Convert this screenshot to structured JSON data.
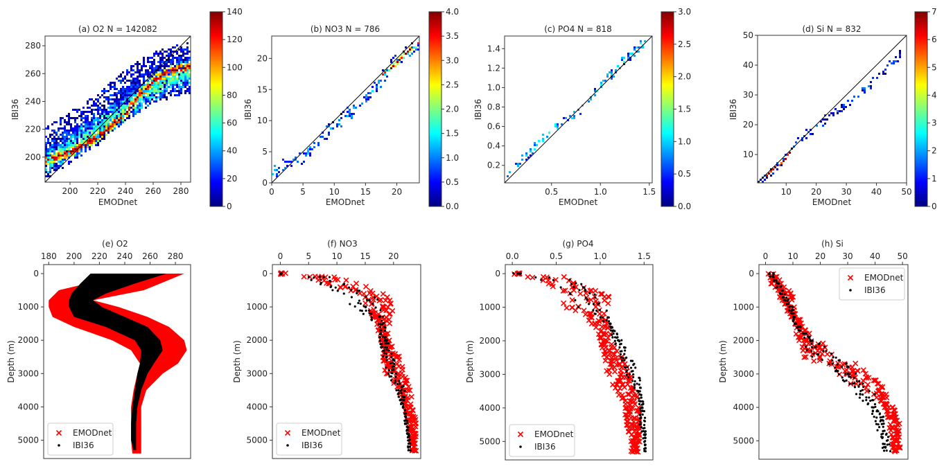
{
  "figure": {
    "colormap": [
      "#00007f",
      "#0000ff",
      "#007fff",
      "#00ffff",
      "#7fff7f",
      "#ffff00",
      "#ff7f00",
      "#ff0000",
      "#7f0000"
    ],
    "identity_line_color": "#000000",
    "emodnet_color": "#ff0000",
    "ibi36_color": "#000000"
  },
  "chart_data": [
    {
      "id": "a",
      "type": "heatmap",
      "title": "(a) O2  N = 142082",
      "xlabel": "EMODnet",
      "ylabel": "IBI36",
      "xlim": [
        182,
        287
      ],
      "ylim": [
        182,
        287
      ],
      "xticks": [
        200,
        220,
        240,
        260,
        280
      ],
      "yticks": [
        200,
        220,
        240,
        260,
        280
      ],
      "colorbar": {
        "min": 0,
        "max": 140,
        "ticks": [
          0,
          20,
          40,
          60,
          80,
          100,
          120,
          140
        ]
      },
      "identity_line": true,
      "bands": [
        {
          "x": [
            183,
            200,
            220,
            240,
            250,
            260,
            270,
            286
          ],
          "y": [
            199,
            204,
            215,
            232,
            246,
            255,
            262,
            266
          ],
          "spread": 4,
          "level": 0.95
        },
        {
          "x": [
            183,
            200,
            220,
            240,
            260,
            285
          ],
          "y": [
            198,
            208,
            222,
            236,
            250,
            262
          ],
          "spread": 9,
          "level": 0.45
        },
        {
          "x": [
            185,
            200,
            220,
            240,
            260,
            285
          ],
          "y": [
            205,
            215,
            228,
            245,
            258,
            265
          ],
          "spread": 18,
          "level": 0.12
        }
      ],
      "N": 142082
    },
    {
      "id": "b",
      "type": "heatmap",
      "title": "(b) NO3  N = 786",
      "xlabel": "EMODnet",
      "ylabel": "IBI36",
      "xlim": [
        0,
        23.6
      ],
      "ylim": [
        0,
        23.6
      ],
      "xticks": [
        0,
        5,
        10,
        15,
        20
      ],
      "yticks": [
        0,
        5,
        10,
        15,
        20
      ],
      "colorbar": {
        "min": 0.0,
        "max": 4.0,
        "ticks": [
          0.0,
          0.5,
          1.0,
          1.5,
          2.0,
          2.5,
          3.0,
          3.5,
          4.0
        ]
      },
      "identity_line": true,
      "bands": [
        {
          "x": [
            0,
            5,
            10,
            15,
            18,
            20,
            23.5
          ],
          "y": [
            2,
            4.5,
            9.5,
            13.5,
            17.5,
            20,
            22.3
          ],
          "spread": 1.2,
          "level": 0.25
        },
        {
          "x": [
            17.8,
            18.8,
            22,
            23.3
          ],
          "y": [
            17.5,
            18.5,
            21.5,
            22.5
          ],
          "spread": 0.4,
          "level": 0.95
        }
      ],
      "N": 786
    },
    {
      "id": "c",
      "type": "heatmap",
      "title": "(c) PO4  N = 818",
      "xlabel": "EMODnet",
      "ylabel": "IBI36",
      "xlim": [
        0.02,
        1.53
      ],
      "ylim": [
        0.02,
        1.53
      ],
      "xticks": [
        0.5,
        1.0,
        1.5
      ],
      "yticks": [
        0.2,
        0.4,
        0.6,
        0.8,
        1.0,
        1.2,
        1.4
      ],
      "colorbar": {
        "min": 0.0,
        "max": 3.0,
        "ticks": [
          0.0,
          0.5,
          1.0,
          1.5,
          2.0,
          2.5,
          3.0
        ]
      },
      "identity_line": true,
      "bands": [
        {
          "x": [
            0.03,
            0.3,
            0.5,
            0.8,
            1.0,
            1.2,
            1.45
          ],
          "y": [
            0.1,
            0.38,
            0.58,
            0.78,
            1.02,
            1.25,
            1.48
          ],
          "spread": 0.05,
          "level": 0.35
        }
      ],
      "N": 818
    },
    {
      "id": "d",
      "type": "heatmap",
      "title": "(d) Si  N = 832",
      "xlabel": "EMODnet",
      "ylabel": "IBI36",
      "xlim": [
        0.5,
        50
      ],
      "ylim": [
        0.5,
        50
      ],
      "xticks": [
        10,
        20,
        30,
        40,
        50
      ],
      "yticks": [
        10,
        20,
        30,
        40,
        50
      ],
      "colorbar": {
        "min": 0,
        "max": 7,
        "ticks": [
          0,
          1,
          2,
          3,
          4,
          5,
          6,
          7
        ]
      },
      "identity_line": true,
      "bands": [
        {
          "x": [
            1,
            5,
            10,
            15,
            20,
            30,
            40,
            48
          ],
          "y": [
            1.5,
            5,
            9,
            16,
            20,
            27,
            36,
            44
          ],
          "spread": 1.5,
          "level": 0.15
        },
        {
          "x": [
            1,
            4,
            9,
            11
          ],
          "y": [
            1.5,
            4,
            8,
            11
          ],
          "spread": 0.6,
          "level": 0.9
        }
      ],
      "N": 832
    },
    {
      "id": "e",
      "type": "scatter",
      "title": "(e) O2",
      "ylabel": "Depth (m)",
      "xlim": [
        176,
        292
      ],
      "ylim": [
        5550,
        -270
      ],
      "y_inverted": true,
      "xticks": [
        180,
        200,
        220,
        240,
        260,
        280
      ],
      "yticks": [
        0,
        1000,
        2000,
        3000,
        4000,
        5000
      ],
      "legend": {
        "position": "lower-left",
        "entries": [
          "EMODnet",
          "IBI36"
        ]
      },
      "series": [
        {
          "name": "EMODnet",
          "marker": "x",
          "color": "#ff0000",
          "depth": [
            0,
            300,
            500,
            800,
            1000,
            1300,
            1600,
            2000,
            2300,
            2700,
            3000,
            3500,
            4000,
            4500,
            5000,
            5400
          ],
          "min": [
            245,
            210,
            188,
            180,
            180,
            183,
            200,
            230,
            245,
            252,
            250,
            247,
            245,
            245,
            245,
            246
          ],
          "max": [
            287,
            268,
            255,
            215,
            235,
            258,
            275,
            287,
            289,
            282,
            270,
            257,
            253,
            253,
            253,
            253
          ]
        },
        {
          "name": "IBI36",
          "marker": "dot",
          "color": "#000000",
          "depth": [
            0,
            300,
            600,
            800,
            1000,
            1300,
            1600,
            2000,
            2300,
            2700,
            3000,
            3500,
            4000,
            4500,
            5000,
            5300
          ],
          "min": [
            213,
            205,
            198,
            196,
            196,
            200,
            225,
            248,
            253,
            252,
            250,
            248,
            246,
            245,
            245,
            247
          ],
          "max": [
            273,
            248,
            225,
            215,
            222,
            240,
            258,
            268,
            270,
            263,
            258,
            253,
            250,
            249,
            249,
            249
          ]
        }
      ]
    },
    {
      "id": "f",
      "type": "scatter",
      "title": "(f) NO3",
      "ylabel": "Depth (m)",
      "xlim": [
        -1.4,
        24.8
      ],
      "ylim": [
        5550,
        -270
      ],
      "y_inverted": true,
      "xticks": [
        0,
        5,
        10,
        15,
        20
      ],
      "yticks": [
        0,
        1000,
        2000,
        3000,
        4000,
        5000
      ],
      "legend": {
        "position": "lower-left",
        "entries": [
          "EMODnet",
          "IBI36"
        ]
      },
      "series": [
        {
          "name": "EMODnet",
          "marker": "x",
          "color": "#ff0000",
          "depth": [
            0,
            100,
            300,
            500,
            700,
            900,
            1200,
            1500,
            2000,
            2500,
            3000,
            3500,
            4000,
            4500,
            5000,
            5300
          ],
          "min": [
            0,
            4,
            8,
            12,
            14,
            15,
            16,
            17,
            17.5,
            18,
            18.5,
            21,
            22,
            22.5,
            23,
            23
          ],
          "max": [
            1,
            10,
            14,
            18,
            20,
            20,
            20,
            19.5,
            19.5,
            21,
            22,
            23,
            23.5,
            24,
            24,
            24
          ]
        },
        {
          "name": "IBI36",
          "marker": "dot",
          "color": "#000000",
          "depth": [
            0,
            100,
            300,
            500,
            700,
            900,
            1200,
            1500,
            2000,
            2500,
            3000,
            3500,
            4000,
            4500,
            5000,
            5300
          ],
          "min": [
            0,
            2,
            7,
            9,
            11,
            12,
            14,
            17,
            17.5,
            18,
            19,
            20.5,
            21.5,
            22,
            22.5,
            22.5
          ],
          "max": [
            0.3,
            9,
            12,
            15,
            17,
            17.5,
            18,
            18.5,
            19,
            20,
            21,
            22,
            22,
            22.5,
            23,
            23
          ]
        }
      ]
    },
    {
      "id": "g",
      "type": "scatter",
      "title": "(g) PO4",
      "ylabel": "Depth (m)",
      "xlim": [
        -0.08,
        1.6
      ],
      "ylim": [
        5550,
        -270
      ],
      "y_inverted": true,
      "xticks": [
        0.0,
        0.5,
        1.0,
        1.5
      ],
      "yticks": [
        0,
        1000,
        2000,
        3000,
        4000,
        5000
      ],
      "legend": {
        "position": "lower-left",
        "entries": [
          "EMODnet",
          "IBI36"
        ]
      },
      "series": [
        {
          "name": "EMODnet",
          "marker": "x",
          "color": "#ff0000",
          "depth": [
            0,
            100,
            300,
            500,
            700,
            1000,
            1300,
            1600,
            2000,
            2500,
            3000,
            3500,
            4000,
            4500,
            5000,
            5300
          ],
          "min": [
            0,
            0.15,
            0.35,
            0.55,
            0.55,
            0.6,
            0.8,
            0.95,
            1.0,
            1.05,
            1.05,
            1.2,
            1.25,
            1.3,
            1.35,
            1.35
          ],
          "max": [
            0.1,
            0.6,
            0.8,
            0.95,
            1.1,
            1.1,
            1.05,
            1.1,
            1.15,
            1.25,
            1.35,
            1.4,
            1.45,
            1.45,
            1.45,
            1.45
          ]
        },
        {
          "name": "IBI36",
          "marker": "dot",
          "color": "#000000",
          "depth": [
            0,
            100,
            300,
            500,
            700,
            1000,
            1300,
            1600,
            2000,
            2500,
            3000,
            3500,
            4000,
            4500,
            5000,
            5300
          ],
          "min": [
            0,
            0.2,
            0.45,
            0.65,
            0.65,
            0.7,
            1.0,
            1.1,
            1.15,
            1.2,
            1.3,
            1.4,
            1.45,
            1.45,
            1.5,
            1.5
          ],
          "max": [
            0.1,
            0.55,
            0.85,
            0.95,
            1.05,
            1.1,
            1.1,
            1.15,
            1.25,
            1.35,
            1.45,
            1.47,
            1.5,
            1.52,
            1.52,
            1.52
          ]
        }
      ]
    },
    {
      "id": "h",
      "type": "scatter",
      "title": "(h) Si",
      "ylabel": "Depth (m)",
      "xlim": [
        -2.4,
        52
      ],
      "ylim": [
        5550,
        -270
      ],
      "y_inverted": true,
      "xticks": [
        0,
        10,
        20,
        30,
        40,
        50
      ],
      "yticks": [
        0,
        1000,
        2000,
        3000,
        4000,
        5000
      ],
      "legend": {
        "position": "upper-right",
        "entries": [
          "EMODnet",
          "IBI36"
        ]
      },
      "series": [
        {
          "name": "EMODnet",
          "marker": "x",
          "color": "#ff0000",
          "depth": [
            0,
            300,
            700,
            1000,
            1400,
            1800,
            2000,
            2300,
            2500,
            2700,
            3000,
            3300,
            3500,
            3800,
            4000,
            4500,
            5000,
            5300
          ],
          "min": [
            0,
            2,
            5,
            7,
            10,
            11,
            12,
            12,
            14,
            20,
            27,
            31,
            37,
            42,
            43,
            45,
            46,
            46
          ],
          "max": [
            3,
            7,
            11,
            11,
            13,
            16,
            19,
            26,
            30,
            34,
            38,
            42,
            44,
            45,
            47,
            49,
            49,
            50
          ]
        },
        {
          "name": "IBI36",
          "marker": "dot",
          "color": "#000000",
          "depth": [
            0,
            300,
            700,
            1000,
            1400,
            1800,
            2000,
            2300,
            2500,
            2700,
            3000,
            3300,
            3500,
            3800,
            4000,
            4500,
            5000,
            5300
          ],
          "min": [
            1,
            3,
            6,
            8,
            10,
            12,
            13,
            15,
            17,
            22,
            26,
            29,
            32,
            35,
            38,
            40,
            42,
            43
          ],
          "max": [
            3,
            5,
            8,
            10,
            11,
            15,
            18,
            24,
            27,
            30,
            33,
            37,
            40,
            41,
            42,
            44,
            45,
            46
          ]
        }
      ]
    }
  ]
}
